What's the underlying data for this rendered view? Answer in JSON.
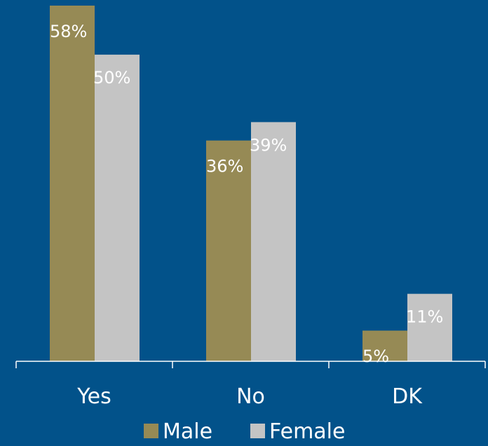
{
  "colors": {
    "background": "#02528A",
    "male": "#968A55",
    "female": "#C4C4C4",
    "axis": "#FFFFFF",
    "text": "#FFFFFF"
  },
  "chart_data": {
    "type": "bar",
    "categories": [
      "Yes",
      "No",
      "DK"
    ],
    "series": [
      {
        "name": "Male",
        "values": [
          58,
          36,
          5
        ],
        "labels": [
          "58%",
          "36%",
          "5%"
        ],
        "color": "#968A55"
      },
      {
        "name": "Female",
        "values": [
          50,
          39,
          11
        ],
        "labels": [
          "50%",
          "39%",
          "11%"
        ],
        "color": "#C4C4C4"
      }
    ],
    "value_unit": "%",
    "title": "",
    "xlabel": "",
    "ylabel": "",
    "ylim": [
      0,
      58
    ],
    "grid": false,
    "legend": "bottom-center"
  }
}
